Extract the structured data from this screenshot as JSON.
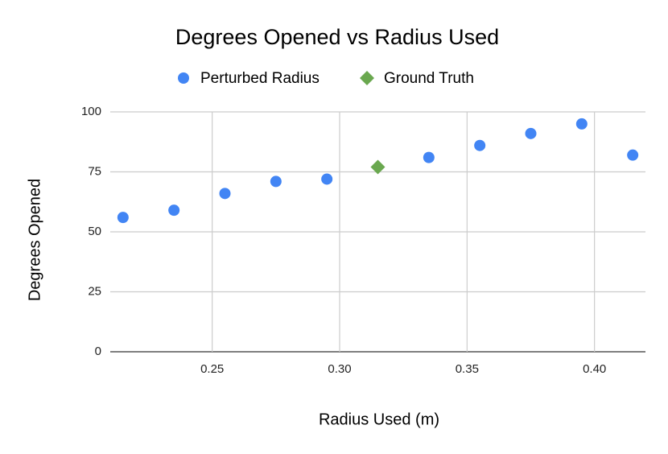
{
  "chart_data": {
    "type": "scatter",
    "title": "Degrees Opened vs Radius Used",
    "x_label": "Radius Used (m)",
    "y_label": "Degrees Opened",
    "series": [
      {
        "name": "Perturbed Radius",
        "color": "#4285f4",
        "marker": "circle",
        "x": [
          0.215,
          0.235,
          0.255,
          0.275,
          0.295,
          0.335,
          0.355,
          0.375,
          0.395,
          0.415
        ],
        "values": [
          56,
          59,
          66,
          71,
          72,
          81,
          86,
          91,
          95,
          82
        ]
      },
      {
        "name": "Ground Truth",
        "color": "#6aa84f",
        "marker": "diamond",
        "x": [
          0.315
        ],
        "values": [
          77
        ]
      }
    ],
    "xlim": [
      0.21,
      0.42
    ],
    "xticks": [
      0.25,
      {
        "value": 0.3,
        "label": "0.30"
      },
      0.35,
      {
        "value": 0.4,
        "label": "0.40"
      }
    ],
    "ylim": [
      0,
      100
    ],
    "yticks": [
      0,
      25,
      50,
      75,
      100
    ],
    "grid": true,
    "legend": "top"
  }
}
